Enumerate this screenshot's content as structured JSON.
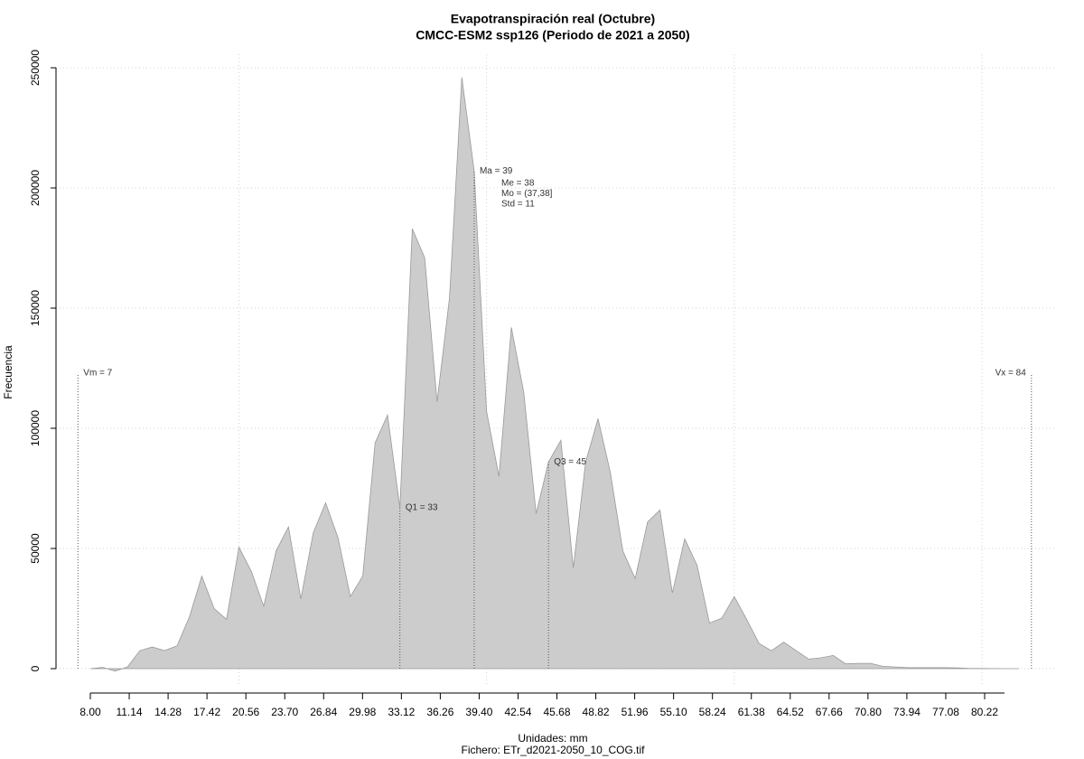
{
  "chart_data": {
    "type": "area",
    "title": "Evapotranspiración real (Octubre)",
    "subtitle": "CMCC-ESM2 ssp126 (Periodo de 2021 a 2050)",
    "x_label": "Unidades: mm",
    "caption": "Fichero: ETr_d2021-2050_10_COG.tif",
    "y_label": "Frecuencia",
    "color": "#cccccc",
    "line_color": "#999999",
    "x": [
      8,
      9,
      10,
      11,
      12,
      13,
      14,
      15,
      16,
      17,
      18,
      19,
      20,
      21,
      22,
      23,
      24,
      25,
      26,
      27,
      28,
      29,
      30,
      31,
      32,
      33,
      34,
      35,
      36,
      37,
      38,
      39,
      40,
      41,
      42,
      43,
      44,
      45,
      46,
      47,
      48,
      49,
      50,
      51,
      52,
      53,
      54,
      55,
      56,
      57,
      58,
      59,
      60,
      61,
      62,
      63,
      64,
      65,
      66,
      67,
      68,
      69,
      70,
      71,
      72,
      73,
      74,
      75,
      76,
      77,
      78,
      79,
      80,
      81,
      82,
      83
    ],
    "values": [
      0,
      500,
      -1000,
      700,
      7500,
      9000,
      7500,
      9500,
      21500,
      38500,
      25000,
      20500,
      50500,
      40500,
      26000,
      49000,
      59000,
      29000,
      56500,
      69000,
      54500,
      30000,
      38500,
      94000,
      105500,
      67000,
      183000,
      171000,
      111000,
      154000,
      246000,
      207000,
      107000,
      80000,
      142000,
      115000,
      64500,
      86000,
      95000,
      42000,
      86000,
      104000,
      81500,
      49000,
      37500,
      61000,
      66000,
      31500,
      54000,
      43000,
      19000,
      21000,
      30000,
      20500,
      10500,
      7500,
      11000,
      7500,
      4000,
      4500,
      5500,
      2000,
      2200,
      2200,
      1000,
      700,
      400,
      400,
      400,
      400,
      300,
      100,
      100,
      50,
      0,
      0
    ],
    "xlim": [
      8,
      80.22
    ],
    "ylim": [
      0,
      250000
    ],
    "xticks": [
      {
        "value": 8,
        "label": "8.00"
      },
      11.14,
      14.28,
      17.42,
      20.56,
      {
        "value": 23.7,
        "label": "23.70"
      },
      26.84,
      29.98,
      33.12,
      36.26,
      {
        "value": 39.4,
        "label": "39.40"
      },
      42.54,
      45.68,
      48.82,
      51.96,
      {
        "value": 55.1,
        "label": "55.10"
      },
      58.24,
      61.38,
      64.52,
      67.66,
      {
        "value": 70.8,
        "label": "70.80"
      },
      73.94,
      77.08,
      80.22
    ],
    "yticks": [
      0,
      50000,
      100000,
      150000,
      200000,
      250000
    ],
    "xgrid": [
      20,
      40,
      60,
      80
    ],
    "grid": true,
    "markers": [
      {
        "label": "Vm = 7",
        "value": 7
      },
      {
        "label": "Q1 = 33",
        "value": 33
      },
      {
        "label": "Ma = 39",
        "value": 39
      },
      {
        "label": "Q3 = 45",
        "value": 45
      },
      {
        "label": "Vx = 84",
        "value": 84
      }
    ],
    "stats": [
      "Me = 38",
      "Mo = (37,38]",
      "Std = 11"
    ]
  }
}
